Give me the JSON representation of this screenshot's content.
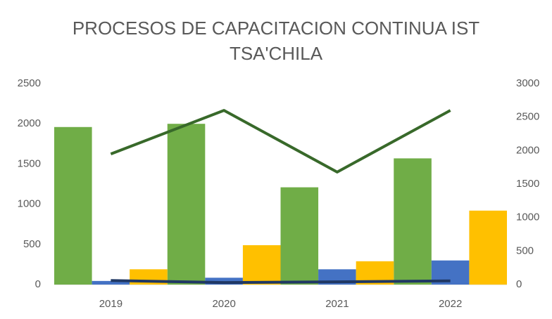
{
  "chart_data": {
    "type": "bar",
    "title": "PROCESOS DE CAPACITACION CONTINUA IST TSA'CHILA",
    "categories": [
      "2019",
      "2020",
      "2021",
      "2022"
    ],
    "series": [
      {
        "type": "bar",
        "color": "#70ad47",
        "values": [
          1960,
          2000,
          1210,
          1570
        ]
      },
      {
        "type": "bar",
        "color": "#4472c4",
        "values": [
          45,
          85,
          190,
          300
        ]
      },
      {
        "type": "bar",
        "color": "#ffc000",
        "values": [
          190,
          490,
          290,
          920
        ]
      },
      {
        "type": "line",
        "axis": "y2",
        "color": "#38692a",
        "values": [
          1950,
          2600,
          1680,
          2600
        ]
      },
      {
        "type": "line",
        "axis": "y2",
        "color": "#203864",
        "values": [
          60,
          30,
          40,
          55
        ]
      }
    ],
    "ylim": [
      0,
      2500
    ],
    "yticks": [
      0,
      500,
      1000,
      1500,
      2000,
      2500
    ],
    "y2lim": [
      0,
      3000
    ],
    "y2ticks": [
      0,
      500,
      1000,
      1500,
      2000,
      2500,
      3000
    ],
    "grid": false
  }
}
